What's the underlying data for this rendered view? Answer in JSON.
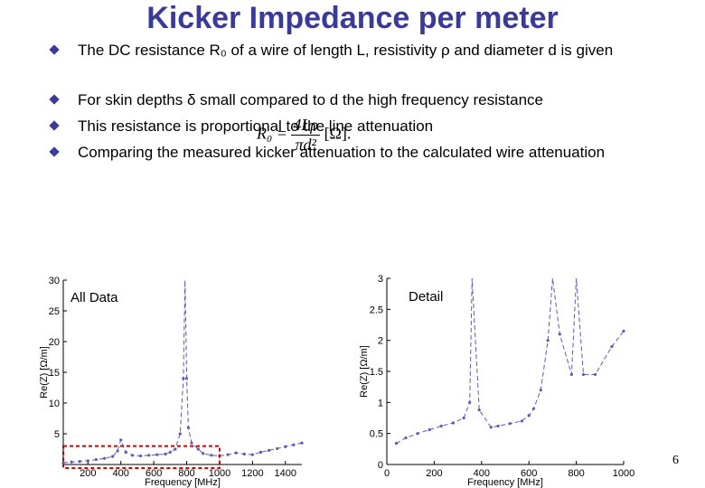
{
  "title": "Kicker Impedance per meter",
  "bullets": [
    "The DC resistance R₀ of a wire of length L, resistivity ρ and diameter d is given",
    "For skin depths δ small compared to d the high frequency resistance",
    "This resistance is proportional to the line attenuation",
    "Comparing the measured kicker attenuation to the calculated wire attenuation"
  ],
  "formula": {
    "lhs": "R₀ =",
    "numerator": "4Lρ",
    "denominator": "πd²",
    "unit": "[Ω]."
  },
  "page_number": "6",
  "colors": {
    "title": "#3a3a9a",
    "bullet": "#3a3a9a",
    "series": "#5a5ab4",
    "highlight": "#d40000"
  },
  "chart_data": [
    {
      "type": "line",
      "annotation": "All Data",
      "xlabel": "Frequency [MHz]",
      "ylabel": "Re(Z) [Ω/m]",
      "xlim": [
        50,
        1500
      ],
      "ylim": [
        0,
        30
      ],
      "xticks": [
        200,
        400,
        600,
        800,
        1000,
        1200,
        1400
      ],
      "yticks": [
        5,
        10,
        15,
        20,
        25,
        30
      ],
      "x": [
        50,
        100,
        150,
        200,
        250,
        300,
        350,
        380,
        400,
        430,
        470,
        520,
        570,
        620,
        670,
        700,
        730,
        760,
        780,
        790,
        800,
        810,
        830,
        870,
        900,
        950,
        1000,
        1050,
        1100,
        1150,
        1200,
        1250,
        1300,
        1350,
        1400,
        1450,
        1500
      ],
      "y": [
        0.3,
        0.4,
        0.5,
        0.6,
        0.8,
        1.0,
        1.3,
        2.2,
        4.0,
        2.0,
        1.5,
        1.4,
        1.5,
        1.6,
        1.7,
        2.0,
        2.5,
        5.0,
        14.0,
        30.0,
        14.0,
        6.0,
        3.5,
        2.5,
        1.8,
        1.5,
        1.4,
        1.6,
        1.9,
        1.7,
        1.6,
        2.0,
        2.3,
        2.6,
        2.9,
        3.2,
        3.5
      ],
      "highlight_box": {
        "x": [
          50,
          1000
        ],
        "y": [
          0,
          3
        ]
      }
    },
    {
      "type": "line",
      "annotation": "Detail",
      "xlabel": "Frequency [MHz]",
      "ylabel": "Re(Z) [Ω/m]",
      "xlim": [
        0,
        1000
      ],
      "ylim": [
        0,
        3
      ],
      "xticks": [
        0,
        200,
        400,
        600,
        800,
        1000
      ],
      "yticks": [
        0,
        0.5,
        1,
        1.5,
        2,
        2.5,
        3
      ],
      "x": [
        40,
        80,
        130,
        180,
        230,
        280,
        325,
        350,
        360,
        390,
        440,
        470,
        520,
        570,
        600,
        620,
        650,
        680,
        700,
        730,
        780,
        800,
        830,
        880,
        950,
        1000
      ],
      "y": [
        0.34,
        0.43,
        0.5,
        0.56,
        0.62,
        0.67,
        0.75,
        1.0,
        3.0,
        0.88,
        0.6,
        0.62,
        0.66,
        0.7,
        0.79,
        0.9,
        1.2,
        2.0,
        3.0,
        2.1,
        1.45,
        3.0,
        1.45,
        1.45,
        1.9,
        2.15
      ]
    }
  ]
}
